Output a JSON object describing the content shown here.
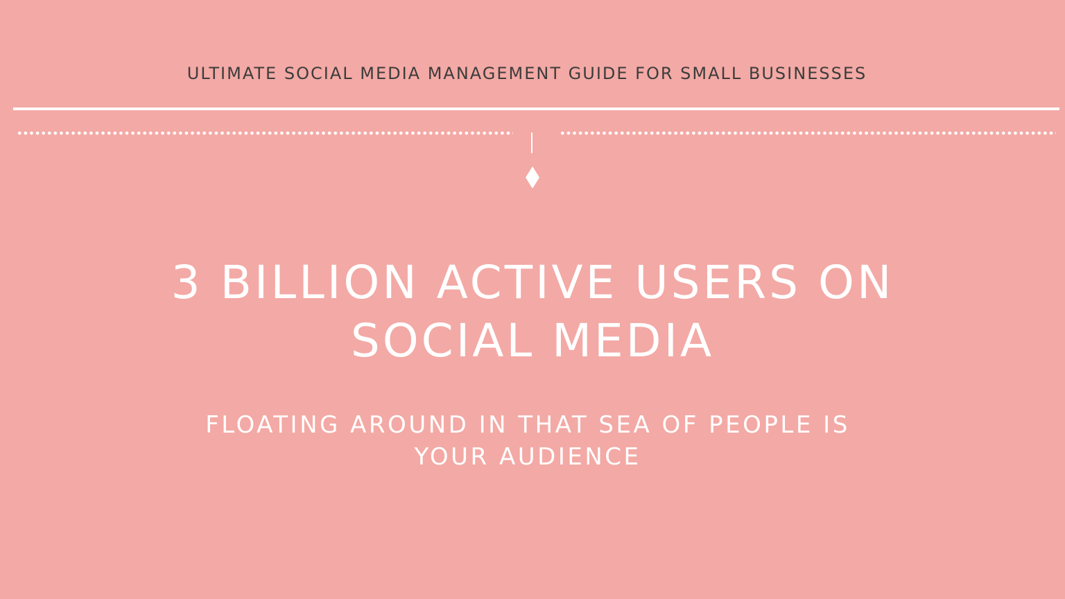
{
  "slide": {
    "top_title": "ULTIMATE SOCIAL MEDIA MANAGEMENT GUIDE FOR SMALL BUSINESSES",
    "headline_line1": "3 BILLION ACTIVE USERS ON",
    "headline_line2": "SOCIAL MEDIA",
    "subline_line1": "FLOATING AROUND IN THAT SEA OF PEOPLE IS",
    "subline_line2": "YOUR AUDIENCE"
  },
  "colors": {
    "background": "#f3a9a5",
    "title_text": "#3c3c3c",
    "accent": "#ffffff"
  },
  "icons": {
    "ornament": "diamond-icon"
  }
}
